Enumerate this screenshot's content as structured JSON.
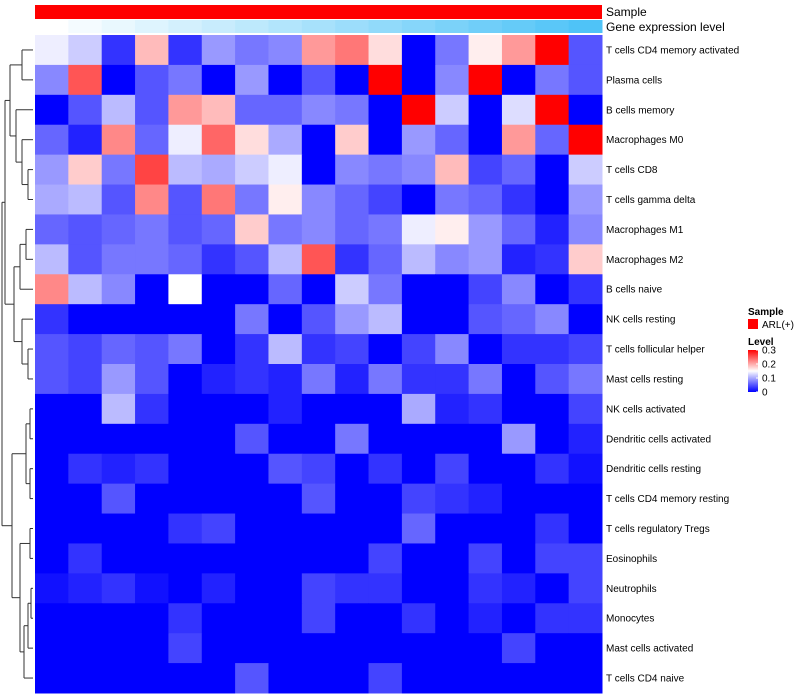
{
  "chart_data": {
    "type": "heatmap",
    "title": "",
    "columns_count": 17,
    "annotation_tracks": [
      {
        "name": "Sample",
        "label": "Sample"
      },
      {
        "name": "Gene expression level",
        "label": "Gene expression level"
      }
    ],
    "rows": [
      "T cells CD4 memory activated",
      "Plasma cells",
      "B cells memory",
      "Macrophages M0",
      "T cells CD8",
      "T cells gamma delta",
      "Macrophages M1",
      "Macrophages M2",
      "B cells naive",
      "NK cells resting",
      "T cells follicular helper",
      "Mast cells resting",
      "NK cells activated",
      "Dendritic cells activated",
      "Dendritic cells resting",
      "T cells CD4 memory resting",
      "T cells regulatory  Tregs",
      "Eosinophils",
      "Neutrophils",
      "Monocytes",
      "Mast cells activated",
      "T cells CD4 naive"
    ],
    "values": [
      [
        0.14,
        0.12,
        0.03,
        0.19,
        0.03,
        0.09,
        0.07,
        0.08,
        0.21,
        0.23,
        0.17,
        0.0,
        0.07,
        0.16,
        0.21,
        0.3,
        0.05
      ],
      [
        0.08,
        0.25,
        0.0,
        0.05,
        0.07,
        0.0,
        0.09,
        0.0,
        0.05,
        0.0,
        0.3,
        0.0,
        0.08,
        0.3,
        0.0,
        0.07,
        0.05
      ],
      [
        0.0,
        0.05,
        0.11,
        0.05,
        0.21,
        0.19,
        0.06,
        0.06,
        0.08,
        0.07,
        0.0,
        0.3,
        0.12,
        0.0,
        0.13,
        0.3,
        0.0
      ],
      [
        0.06,
        0.02,
        0.22,
        0.06,
        0.14,
        0.24,
        0.17,
        0.1,
        0.0,
        0.18,
        0.0,
        0.09,
        0.06,
        0.0,
        0.21,
        0.06,
        0.3
      ],
      [
        0.09,
        0.18,
        0.07,
        0.26,
        0.11,
        0.1,
        0.12,
        0.14,
        0.0,
        0.08,
        0.07,
        0.08,
        0.19,
        0.04,
        0.06,
        0.0,
        0.12
      ],
      [
        0.1,
        0.11,
        0.05,
        0.22,
        0.05,
        0.23,
        0.07,
        0.16,
        0.08,
        0.06,
        0.04,
        0.0,
        0.07,
        0.06,
        0.03,
        0.0,
        0.09
      ],
      [
        0.06,
        0.05,
        0.06,
        0.07,
        0.05,
        0.06,
        0.18,
        0.07,
        0.08,
        0.06,
        0.07,
        0.14,
        0.16,
        0.09,
        0.06,
        0.02,
        0.08
      ],
      [
        0.11,
        0.05,
        0.07,
        0.07,
        0.06,
        0.03,
        0.05,
        0.11,
        0.25,
        0.03,
        0.06,
        0.11,
        0.08,
        0.09,
        0.02,
        0.03,
        0.18
      ],
      [
        0.22,
        0.11,
        0.08,
        0.0,
        0.15,
        0.0,
        0.0,
        0.06,
        0.0,
        0.12,
        0.07,
        0.0,
        0.0,
        0.04,
        0.08,
        0.0,
        0.03
      ],
      [
        0.03,
        0.0,
        0.0,
        0.0,
        0.0,
        0.0,
        0.07,
        0.0,
        0.05,
        0.09,
        0.11,
        0.0,
        0.0,
        0.05,
        0.06,
        0.08,
        0.0
      ],
      [
        0.05,
        0.04,
        0.06,
        0.05,
        0.07,
        0.0,
        0.03,
        0.11,
        0.03,
        0.04,
        0.0,
        0.04,
        0.08,
        0.0,
        0.03,
        0.03,
        0.04
      ],
      [
        0.05,
        0.04,
        0.09,
        0.05,
        0.0,
        0.02,
        0.03,
        0.02,
        0.07,
        0.02,
        0.07,
        0.03,
        0.03,
        0.07,
        0.0,
        0.05,
        0.07
      ],
      [
        0.0,
        0.0,
        0.11,
        0.03,
        0.0,
        0.0,
        0.0,
        0.02,
        0.0,
        0.0,
        0.0,
        0.1,
        0.02,
        0.03,
        0.0,
        0.0,
        0.04
      ],
      [
        0.0,
        0.0,
        0.0,
        0.0,
        0.0,
        0.0,
        0.05,
        0.0,
        0.0,
        0.07,
        0.0,
        0.0,
        0.0,
        0.0,
        0.09,
        0.0,
        0.02
      ],
      [
        0.0,
        0.03,
        0.02,
        0.03,
        0.0,
        0.0,
        0.0,
        0.05,
        0.04,
        0.0,
        0.03,
        0.0,
        0.04,
        0.0,
        0.0,
        0.03,
        0.01
      ],
      [
        0.0,
        0.0,
        0.05,
        0.0,
        0.0,
        0.0,
        0.0,
        0.0,
        0.05,
        0.0,
        0.0,
        0.04,
        0.03,
        0.02,
        0.0,
        0.0,
        0.0
      ],
      [
        0.0,
        0.0,
        0.0,
        0.0,
        0.03,
        0.04,
        0.0,
        0.0,
        0.0,
        0.0,
        0.0,
        0.06,
        0.0,
        0.0,
        0.0,
        0.03,
        0.0
      ],
      [
        0.0,
        0.03,
        0.0,
        0.0,
        0.0,
        0.0,
        0.0,
        0.0,
        0.0,
        0.0,
        0.04,
        0.0,
        0.0,
        0.04,
        0.0,
        0.04,
        0.04
      ],
      [
        0.01,
        0.02,
        0.03,
        0.01,
        0.0,
        0.02,
        0.0,
        0.0,
        0.04,
        0.03,
        0.03,
        0.0,
        0.0,
        0.03,
        0.02,
        0.0,
        0.04
      ],
      [
        0.0,
        0.0,
        0.0,
        0.0,
        0.03,
        0.0,
        0.0,
        0.0,
        0.04,
        0.0,
        0.0,
        0.03,
        0.0,
        0.02,
        0.0,
        0.03,
        0.03
      ],
      [
        0.0,
        0.0,
        0.0,
        0.0,
        0.04,
        0.0,
        0.0,
        0.0,
        0.0,
        0.0,
        0.0,
        0.0,
        0.0,
        0.0,
        0.04,
        0.0,
        0.0
      ],
      [
        0.0,
        0.0,
        0.0,
        0.0,
        0.0,
        0.0,
        0.05,
        0.0,
        0.0,
        0.0,
        0.04,
        0.0,
        0.0,
        0.0,
        0.0,
        0.0,
        0.0
      ]
    ],
    "gene_expression_track": [
      0.0,
      0.02,
      0.04,
      0.06,
      0.08,
      0.1,
      0.12,
      0.14,
      0.16,
      0.18,
      0.2,
      0.22,
      0.24,
      0.26,
      0.28,
      0.3,
      0.32
    ],
    "legend": {
      "sample_title": "Sample",
      "sample_entry": "ARL(+)",
      "level_title": "Level",
      "ticks": [
        "0.3",
        "0.2",
        "0.1",
        "0"
      ],
      "range": [
        0,
        0.3
      ]
    },
    "colors": {
      "low": "#0000ff",
      "mid": "#ffffff",
      "high": "#ff0000",
      "sample": "#ff0000",
      "expr_low": "#ffffff",
      "expr_high": "#4fc3f7"
    }
  }
}
